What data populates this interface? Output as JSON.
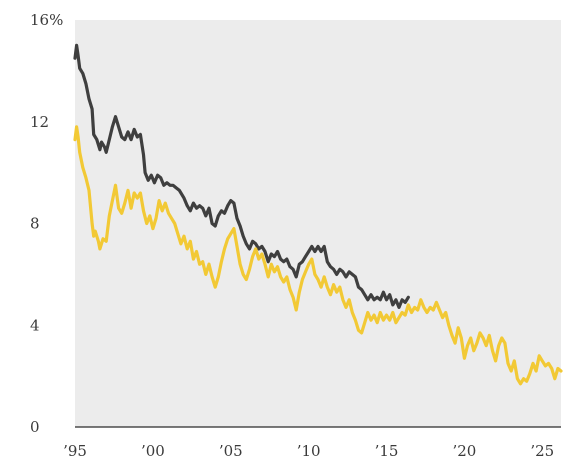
{
  "chart_data": {
    "type": "line",
    "title": "",
    "xlabel": "",
    "ylabel": "",
    "xlim": [
      1995,
      2026.2
    ],
    "ylim": [
      0,
      16
    ],
    "y_ticks": [
      {
        "value": 0,
        "label": "0"
      },
      {
        "value": 4,
        "label": "4"
      },
      {
        "value": 8,
        "label": "8"
      },
      {
        "value": 12,
        "label": "12"
      },
      {
        "value": 16,
        "label": "16%"
      }
    ],
    "x_ticks": [
      {
        "value": 1995,
        "label": "’95"
      },
      {
        "value": 2000,
        "label": "’00"
      },
      {
        "value": 2005,
        "label": "’05"
      },
      {
        "value": 2010,
        "label": "’10"
      },
      {
        "value": 2015,
        "label": "’15"
      },
      {
        "value": 2020,
        "label": "’20"
      },
      {
        "value": 2025,
        "label": "’25"
      }
    ],
    "grid": false,
    "background": "#ececec",
    "series": [
      {
        "color": "#3f3f3f",
        "points": [
          [
            1995.0,
            14.5
          ],
          [
            1995.1,
            15.0
          ],
          [
            1995.2,
            14.6
          ],
          [
            1995.3,
            14.1
          ],
          [
            1995.5,
            13.9
          ],
          [
            1995.7,
            13.5
          ],
          [
            1995.9,
            12.9
          ],
          [
            1996.1,
            12.5
          ],
          [
            1996.2,
            11.5
          ],
          [
            1996.4,
            11.3
          ],
          [
            1996.6,
            10.9
          ],
          [
            1996.7,
            11.2
          ],
          [
            1996.9,
            11.0
          ],
          [
            1997.0,
            10.8
          ],
          [
            1997.2,
            11.3
          ],
          [
            1997.4,
            11.8
          ],
          [
            1997.6,
            12.2
          ],
          [
            1997.8,
            11.8
          ],
          [
            1998.0,
            11.4
          ],
          [
            1998.2,
            11.3
          ],
          [
            1998.4,
            11.6
          ],
          [
            1998.6,
            11.3
          ],
          [
            1998.8,
            11.7
          ],
          [
            1999.0,
            11.4
          ],
          [
            1999.2,
            11.5
          ],
          [
            1999.4,
            10.7
          ],
          [
            1999.5,
            10.0
          ],
          [
            1999.7,
            9.7
          ],
          [
            1999.9,
            9.9
          ],
          [
            2000.1,
            9.6
          ],
          [
            2000.3,
            9.9
          ],
          [
            2000.5,
            9.8
          ],
          [
            2000.7,
            9.5
          ],
          [
            2000.9,
            9.6
          ],
          [
            2001.1,
            9.5
          ],
          [
            2001.3,
            9.5
          ],
          [
            2001.5,
            9.4
          ],
          [
            2001.7,
            9.3
          ],
          [
            2002.0,
            9.0
          ],
          [
            2002.2,
            8.7
          ],
          [
            2002.4,
            8.5
          ],
          [
            2002.6,
            8.8
          ],
          [
            2002.8,
            8.6
          ],
          [
            2003.0,
            8.7
          ],
          [
            2003.2,
            8.6
          ],
          [
            2003.4,
            8.3
          ],
          [
            2003.6,
            8.6
          ],
          [
            2003.8,
            8.0
          ],
          [
            2004.0,
            7.9
          ],
          [
            2004.2,
            8.3
          ],
          [
            2004.4,
            8.5
          ],
          [
            2004.6,
            8.4
          ],
          [
            2004.8,
            8.7
          ],
          [
            2005.0,
            8.9
          ],
          [
            2005.2,
            8.8
          ],
          [
            2005.4,
            8.2
          ],
          [
            2005.6,
            7.9
          ],
          [
            2005.8,
            7.5
          ],
          [
            2006.0,
            7.2
          ],
          [
            2006.2,
            7.0
          ],
          [
            2006.4,
            7.3
          ],
          [
            2006.6,
            7.2
          ],
          [
            2006.8,
            7.0
          ],
          [
            2007.0,
            7.1
          ],
          [
            2007.2,
            6.9
          ],
          [
            2007.4,
            6.5
          ],
          [
            2007.6,
            6.8
          ],
          [
            2007.8,
            6.7
          ],
          [
            2008.0,
            6.9
          ],
          [
            2008.2,
            6.6
          ],
          [
            2008.4,
            6.5
          ],
          [
            2008.6,
            6.6
          ],
          [
            2008.8,
            6.3
          ],
          [
            2009.0,
            6.2
          ],
          [
            2009.2,
            5.9
          ],
          [
            2009.4,
            6.4
          ],
          [
            2009.6,
            6.5
          ],
          [
            2009.8,
            6.7
          ],
          [
            2010.0,
            6.9
          ],
          [
            2010.2,
            7.1
          ],
          [
            2010.4,
            6.9
          ],
          [
            2010.6,
            7.1
          ],
          [
            2010.8,
            6.9
          ],
          [
            2011.0,
            7.1
          ],
          [
            2011.2,
            6.5
          ],
          [
            2011.4,
            6.3
          ],
          [
            2011.6,
            6.2
          ],
          [
            2011.8,
            6.0
          ],
          [
            2012.0,
            6.2
          ],
          [
            2012.2,
            6.1
          ],
          [
            2012.4,
            5.9
          ],
          [
            2012.6,
            6.1
          ],
          [
            2012.8,
            6.0
          ],
          [
            2013.0,
            5.9
          ],
          [
            2013.2,
            5.5
          ],
          [
            2013.4,
            5.4
          ],
          [
            2013.6,
            5.2
          ],
          [
            2013.8,
            5.0
          ],
          [
            2014.0,
            5.2
          ],
          [
            2014.2,
            5.0
          ],
          [
            2014.4,
            5.1
          ],
          [
            2014.6,
            5.0
          ],
          [
            2014.8,
            5.3
          ],
          [
            2015.0,
            5.0
          ],
          [
            2015.2,
            5.2
          ],
          [
            2015.4,
            4.8
          ],
          [
            2015.6,
            5.0
          ],
          [
            2015.8,
            4.7
          ],
          [
            2016.0,
            5.0
          ],
          [
            2016.2,
            4.9
          ],
          [
            2016.4,
            5.1
          ]
        ]
      },
      {
        "color": "#f2c935",
        "points": [
          [
            1995.0,
            11.3
          ],
          [
            1995.1,
            11.8
          ],
          [
            1995.2,
            11.4
          ],
          [
            1995.3,
            10.8
          ],
          [
            1995.5,
            10.2
          ],
          [
            1995.7,
            9.8
          ],
          [
            1995.9,
            9.3
          ],
          [
            1996.1,
            8.0
          ],
          [
            1996.2,
            7.5
          ],
          [
            1996.3,
            7.7
          ],
          [
            1996.5,
            7.3
          ],
          [
            1996.6,
            7.0
          ],
          [
            1996.8,
            7.4
          ],
          [
            1997.0,
            7.3
          ],
          [
            1997.2,
            8.3
          ],
          [
            1997.4,
            8.9
          ],
          [
            1997.6,
            9.5
          ],
          [
            1997.8,
            8.6
          ],
          [
            1998.0,
            8.4
          ],
          [
            1998.2,
            8.8
          ],
          [
            1998.4,
            9.3
          ],
          [
            1998.6,
            8.6
          ],
          [
            1998.8,
            9.2
          ],
          [
            1999.0,
            9.0
          ],
          [
            1999.2,
            9.2
          ],
          [
            1999.4,
            8.5
          ],
          [
            1999.6,
            8.0
          ],
          [
            1999.8,
            8.3
          ],
          [
            2000.0,
            7.8
          ],
          [
            2000.2,
            8.2
          ],
          [
            2000.4,
            8.9
          ],
          [
            2000.6,
            8.5
          ],
          [
            2000.8,
            8.8
          ],
          [
            2001.0,
            8.4
          ],
          [
            2001.2,
            8.2
          ],
          [
            2001.4,
            8.0
          ],
          [
            2001.6,
            7.6
          ],
          [
            2001.8,
            7.2
          ],
          [
            2002.0,
            7.5
          ],
          [
            2002.2,
            7.0
          ],
          [
            2002.4,
            7.3
          ],
          [
            2002.6,
            6.6
          ],
          [
            2002.8,
            6.9
          ],
          [
            2003.0,
            6.4
          ],
          [
            2003.2,
            6.5
          ],
          [
            2003.4,
            6.0
          ],
          [
            2003.6,
            6.4
          ],
          [
            2003.8,
            5.9
          ],
          [
            2004.0,
            5.5
          ],
          [
            2004.2,
            5.9
          ],
          [
            2004.4,
            6.5
          ],
          [
            2004.6,
            7.0
          ],
          [
            2004.8,
            7.4
          ],
          [
            2005.0,
            7.6
          ],
          [
            2005.2,
            7.8
          ],
          [
            2005.4,
            7.1
          ],
          [
            2005.6,
            6.4
          ],
          [
            2005.8,
            6.0
          ],
          [
            2006.0,
            5.8
          ],
          [
            2006.2,
            6.2
          ],
          [
            2006.4,
            6.7
          ],
          [
            2006.6,
            7.0
          ],
          [
            2006.8,
            6.6
          ],
          [
            2007.0,
            6.8
          ],
          [
            2007.2,
            6.4
          ],
          [
            2007.4,
            5.9
          ],
          [
            2007.6,
            6.4
          ],
          [
            2007.8,
            6.1
          ],
          [
            2008.0,
            6.3
          ],
          [
            2008.2,
            5.9
          ],
          [
            2008.4,
            5.7
          ],
          [
            2008.6,
            5.9
          ],
          [
            2008.8,
            5.4
          ],
          [
            2009.0,
            5.1
          ],
          [
            2009.2,
            4.6
          ],
          [
            2009.4,
            5.3
          ],
          [
            2009.6,
            5.8
          ],
          [
            2009.8,
            6.1
          ],
          [
            2010.0,
            6.4
          ],
          [
            2010.2,
            6.6
          ],
          [
            2010.4,
            6.0
          ],
          [
            2010.6,
            5.8
          ],
          [
            2010.8,
            5.5
          ],
          [
            2011.0,
            5.9
          ],
          [
            2011.2,
            5.5
          ],
          [
            2011.4,
            5.2
          ],
          [
            2011.6,
            5.6
          ],
          [
            2011.8,
            5.3
          ],
          [
            2012.0,
            5.5
          ],
          [
            2012.2,
            5.0
          ],
          [
            2012.4,
            4.7
          ],
          [
            2012.6,
            5.0
          ],
          [
            2012.8,
            4.5
          ],
          [
            2013.0,
            4.2
          ],
          [
            2013.2,
            3.8
          ],
          [
            2013.4,
            3.7
          ],
          [
            2013.6,
            4.1
          ],
          [
            2013.8,
            4.5
          ],
          [
            2014.0,
            4.2
          ],
          [
            2014.2,
            4.4
          ],
          [
            2014.4,
            4.1
          ],
          [
            2014.6,
            4.5
          ],
          [
            2014.8,
            4.2
          ],
          [
            2015.0,
            4.4
          ],
          [
            2015.2,
            4.2
          ],
          [
            2015.4,
            4.5
          ],
          [
            2015.6,
            4.1
          ],
          [
            2015.8,
            4.3
          ],
          [
            2016.0,
            4.5
          ],
          [
            2016.2,
            4.4
          ],
          [
            2016.4,
            4.8
          ],
          [
            2016.6,
            4.5
          ],
          [
            2016.8,
            4.7
          ],
          [
            2017.0,
            4.6
          ],
          [
            2017.2,
            5.0
          ],
          [
            2017.4,
            4.7
          ],
          [
            2017.6,
            4.5
          ],
          [
            2017.8,
            4.7
          ],
          [
            2018.0,
            4.6
          ],
          [
            2018.2,
            4.9
          ],
          [
            2018.4,
            4.6
          ],
          [
            2018.6,
            4.3
          ],
          [
            2018.8,
            4.5
          ],
          [
            2019.0,
            4.0
          ],
          [
            2019.2,
            3.6
          ],
          [
            2019.4,
            3.3
          ],
          [
            2019.6,
            3.9
          ],
          [
            2019.8,
            3.5
          ],
          [
            2020.0,
            2.7
          ],
          [
            2020.2,
            3.2
          ],
          [
            2020.4,
            3.5
          ],
          [
            2020.6,
            3.0
          ],
          [
            2020.8,
            3.3
          ],
          [
            2021.0,
            3.7
          ],
          [
            2021.2,
            3.5
          ],
          [
            2021.4,
            3.2
          ],
          [
            2021.6,
            3.6
          ],
          [
            2021.8,
            3.0
          ],
          [
            2022.0,
            2.6
          ],
          [
            2022.2,
            3.2
          ],
          [
            2022.4,
            3.5
          ],
          [
            2022.6,
            3.3
          ],
          [
            2022.8,
            2.5
          ],
          [
            2023.0,
            2.2
          ],
          [
            2023.2,
            2.6
          ],
          [
            2023.4,
            1.9
          ],
          [
            2023.6,
            1.7
          ],
          [
            2023.8,
            1.9
          ],
          [
            2024.0,
            1.8
          ],
          [
            2024.2,
            2.1
          ],
          [
            2024.4,
            2.5
          ],
          [
            2024.6,
            2.2
          ],
          [
            2024.8,
            2.8
          ],
          [
            2025.0,
            2.6
          ],
          [
            2025.2,
            2.4
          ],
          [
            2025.4,
            2.5
          ],
          [
            2025.6,
            2.3
          ],
          [
            2025.8,
            1.9
          ],
          [
            2026.0,
            2.3
          ],
          [
            2026.2,
            2.2
          ]
        ]
      }
    ]
  }
}
